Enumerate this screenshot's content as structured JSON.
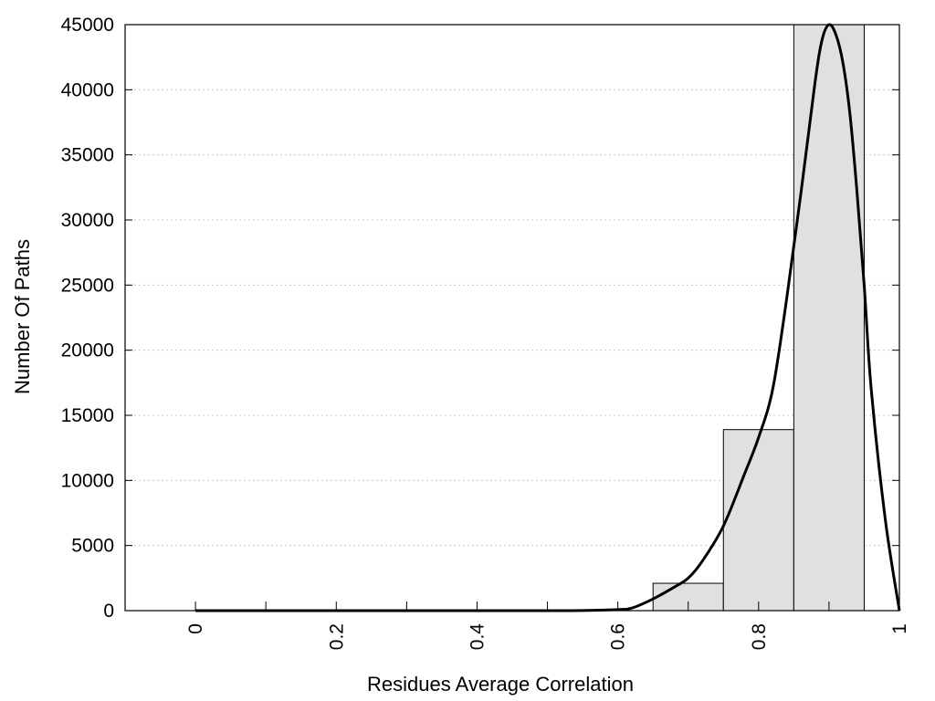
{
  "chart_data": {
    "type": "bar",
    "title": "",
    "xlabel": "Residues Average Correlation",
    "ylabel": "Number Of Paths",
    "xlim": [
      -0.1,
      1.0
    ],
    "ylim": [
      0,
      45000
    ],
    "grid": {
      "y": true,
      "x": false,
      "style": "dotted"
    },
    "x_ticks": [
      0,
      0.2,
      0.4,
      0.6,
      0.8,
      1
    ],
    "x_minor_ticks": [
      0.1,
      0.3,
      0.5,
      0.7,
      0.9
    ],
    "x_tick_labels": [
      "0",
      "0.2",
      "0.4",
      "0.6",
      "0.8",
      "1"
    ],
    "y_ticks": [
      0,
      5000,
      10000,
      15000,
      20000,
      25000,
      30000,
      35000,
      40000,
      45000
    ],
    "y_tick_labels": [
      "0",
      "5000",
      "10000",
      "15000",
      "20000",
      "25000",
      "30000",
      "35000",
      "40000",
      "45000"
    ],
    "bins": [
      {
        "x0": -0.05,
        "x1": 0.05,
        "value": 0
      },
      {
        "x0": 0.05,
        "x1": 0.15,
        "value": 0
      },
      {
        "x0": 0.15,
        "x1": 0.25,
        "value": 0
      },
      {
        "x0": 0.25,
        "x1": 0.35,
        "value": 0
      },
      {
        "x0": 0.35,
        "x1": 0.45,
        "value": 0
      },
      {
        "x0": 0.45,
        "x1": 0.55,
        "value": 0
      },
      {
        "x0": 0.55,
        "x1": 0.65,
        "value": 50
      },
      {
        "x0": 0.65,
        "x1": 0.75,
        "value": 2100
      },
      {
        "x0": 0.75,
        "x1": 0.85,
        "value": 13900
      },
      {
        "x0": 0.85,
        "x1": 0.95,
        "value": 45000
      }
    ],
    "bar_fill": "#e0e0e0",
    "bar_stroke": "#000000",
    "curve": {
      "x": [
        0,
        0.2,
        0.4,
        0.5,
        0.55,
        0.6,
        0.62,
        0.65,
        0.68,
        0.7,
        0.72,
        0.75,
        0.78,
        0.8,
        0.82,
        0.84,
        0.86,
        0.88,
        0.89,
        0.9,
        0.91,
        0.92,
        0.93,
        0.94,
        0.95,
        0.96,
        0.98,
        1.0
      ],
      "y": [
        0,
        0,
        0,
        0,
        10,
        80,
        200,
        900,
        1800,
        2500,
        3800,
        6500,
        10500,
        13300,
        17000,
        24000,
        32000,
        40500,
        43800,
        45000,
        44200,
        42000,
        38000,
        32000,
        25000,
        17000,
        7000,
        0
      ],
      "color": "#000000"
    }
  }
}
